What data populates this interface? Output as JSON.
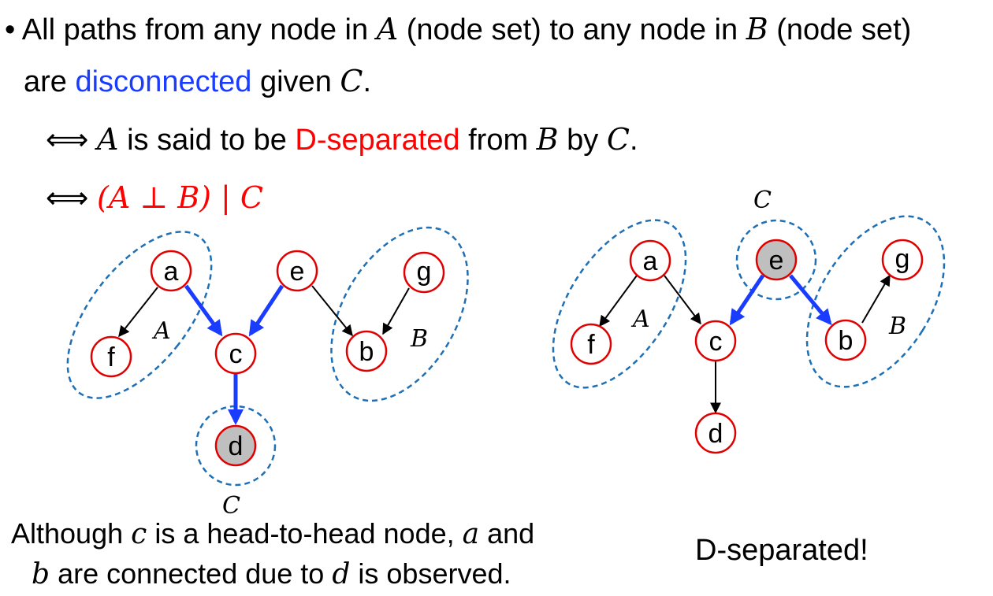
{
  "bullet": {
    "marker": "•",
    "line1_a": "All paths from any node in",
    "var_A": "A",
    "line1_b": "(node set) to any node in",
    "var_B": "B",
    "line1_c": "(node set)",
    "line2_a": "are",
    "disconnected": "disconnected",
    "line2_b": "given",
    "var_C": "C",
    "period": "."
  },
  "equiv1": {
    "symbol": "⟺",
    "var_A": "A",
    "text_a": "is said to be",
    "dsep": "D-separated",
    "text_b": "from",
    "var_B": "B",
    "text_c": "by",
    "var_C": "C",
    "period": "."
  },
  "equiv2": {
    "symbol": "⟺",
    "formula": "(A ⊥ B) | C"
  },
  "left_graph": {
    "nodes": {
      "a": "a",
      "e": "e",
      "g": "g",
      "f": "f",
      "c": "c",
      "b": "b",
      "d": "d"
    },
    "set_labels": {
      "A": "A",
      "B": "B",
      "C": "C"
    }
  },
  "right_graph": {
    "nodes": {
      "a": "a",
      "e": "e",
      "g": "g",
      "f": "f",
      "c": "c",
      "b": "b",
      "d": "d"
    },
    "set_labels": {
      "A": "A",
      "B": "B",
      "C": "C"
    }
  },
  "caption_left": {
    "l1_a": "Although",
    "var_c": "c",
    "l1_b": "is a head-to-head node,",
    "var_a": "a",
    "l1_c": "and",
    "var_b": "b",
    "l2": "are connected due to",
    "var_d": "d",
    "l2_b": "is observed."
  },
  "caption_right": "D-separated!",
  "colors": {
    "node_border": "#e00000",
    "observed_fill": "#bfbfbf",
    "highlight_edge": "#1a3cff",
    "dashed_set": "#1f6fb5",
    "disconnected_text": "#1a3cff",
    "dsep_text": "#ff0000"
  }
}
